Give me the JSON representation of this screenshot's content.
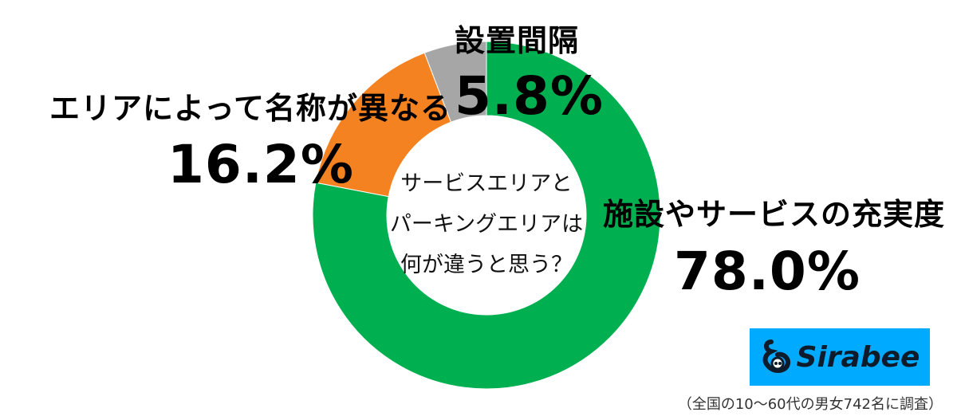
{
  "chart_data": {
    "type": "pie",
    "style": "donut",
    "categories": [
      "施設やサービスの充実度",
      "エリアによって名称が異なる",
      "設置間隔"
    ],
    "values": [
      78.0,
      16.2,
      5.8
    ],
    "value_labels": [
      "78.0%",
      "16.2%",
      "5.8%"
    ],
    "center_text": [
      "サービスエリアと",
      "パーキングエリアは",
      "何が違うと思う？"
    ],
    "colors": [
      "#00b050",
      "#f58220",
      "#a6a6a6"
    ]
  },
  "brand": {
    "name": "Sirabee",
    "color": "#00aaff"
  },
  "footnote": "（全国の10〜60代の男女742名に調査）"
}
